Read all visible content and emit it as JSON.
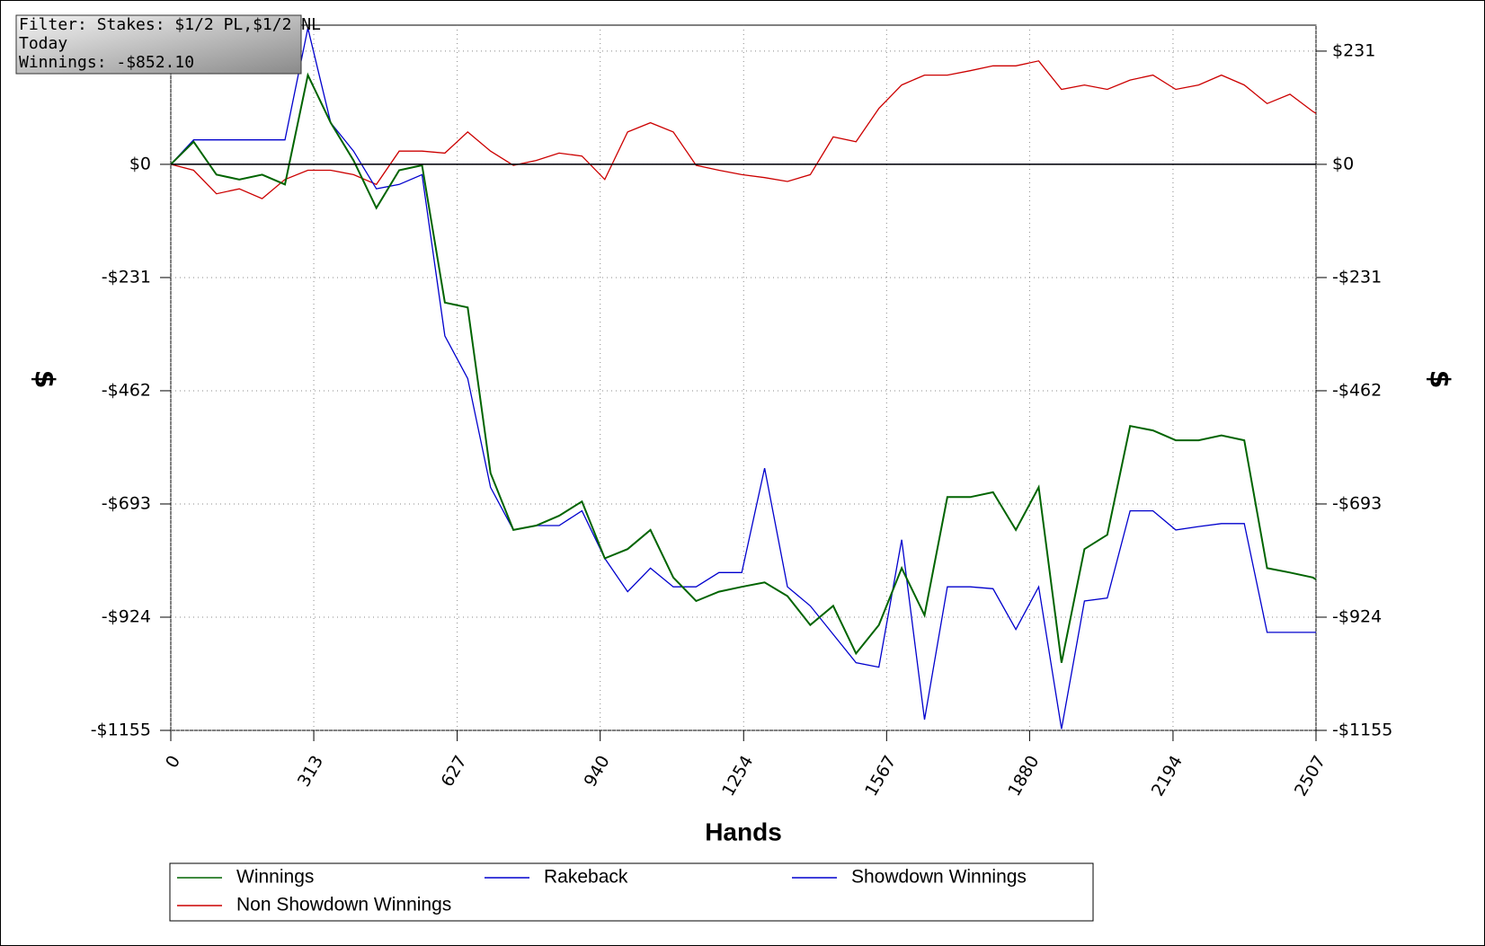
{
  "filter_box": {
    "lines": [
      "Filter: Stakes: $1/2 PL,$1/2 NL",
      "Today",
      "Winnings: -$852.10"
    ]
  },
  "chart_data": {
    "type": "line",
    "x_label": "Hands",
    "y_label": "$",
    "y2_label": "$",
    "x": [
      0,
      50,
      100,
      150,
      200,
      250,
      300,
      350,
      400,
      450,
      500,
      550,
      600,
      650,
      700,
      750,
      800,
      850,
      900,
      950,
      1000,
      1050,
      1100,
      1150,
      1200,
      1250,
      1300,
      1350,
      1400,
      1450,
      1500,
      1550,
      1600,
      1650,
      1700,
      1750,
      1800,
      1850,
      1900,
      1950,
      2000,
      2050,
      2100,
      2150,
      2200,
      2250,
      2300,
      2350,
      2400,
      2450,
      2500,
      2507
    ],
    "series": [
      {
        "name": "Winnings",
        "color": "#006400",
        "values": [
          0,
          46,
          -21,
          -31,
          -21,
          -41,
          182,
          85,
          8,
          -89,
          -12,
          -2,
          -282,
          -292,
          -630,
          -746,
          -737,
          -717,
          -688,
          -804,
          -785,
          -746,
          -843,
          -891,
          -872,
          -862,
          -853,
          -881,
          -940,
          -901,
          -998,
          -940,
          -824,
          -920,
          -679,
          -679,
          -669,
          -746,
          -659,
          -1017,
          -785,
          -756,
          -534,
          -543,
          -563,
          -563,
          -553,
          -563,
          -824,
          -833,
          -843,
          -847
        ]
      },
      {
        "name": "Rakeback",
        "color": "#0000cd",
        "values": [
          0,
          0,
          0,
          0,
          0,
          0,
          0,
          0,
          0,
          0,
          0,
          0,
          0,
          0,
          0,
          0,
          0,
          0,
          0,
          0,
          0,
          0,
          0,
          0,
          0,
          0,
          0,
          0,
          0,
          0,
          0,
          0,
          0,
          0,
          0,
          0,
          0,
          0,
          0,
          0,
          0,
          0,
          0,
          0,
          0,
          0,
          0,
          0,
          0,
          0,
          0,
          0
        ]
      },
      {
        "name": "Showdown Winnings",
        "color": "#0000cd",
        "values": [
          0,
          50,
          50,
          50,
          50,
          50,
          278,
          85,
          27,
          -50,
          -41,
          -21,
          -350,
          -437,
          -659,
          -746,
          -737,
          -737,
          -707,
          -804,
          -872,
          -824,
          -862,
          -862,
          -833,
          -833,
          -620,
          -862,
          -901,
          -959,
          -1017,
          -1026,
          -766,
          -1133,
          -862,
          -862,
          -866,
          -949,
          -862,
          -1152,
          -891,
          -885,
          -707,
          -707,
          -746,
          -739,
          -733,
          -733,
          -955,
          -955,
          -955,
          -955
        ]
      },
      {
        "name": "Non Showdown Winnings",
        "color": "#cc0000",
        "values": [
          0,
          -12,
          -60,
          -50,
          -70,
          -31,
          -12,
          -12,
          -21,
          -41,
          27,
          27,
          23,
          66,
          27,
          -2,
          8,
          23,
          17,
          -31,
          66,
          85,
          66,
          -2,
          -12,
          -21,
          -27,
          -35,
          -21,
          56,
          46,
          114,
          162,
          182,
          182,
          191,
          201,
          201,
          211,
          153,
          162,
          153,
          172,
          182,
          153,
          162,
          182,
          162,
          124,
          143,
          108,
          104
        ]
      }
    ],
    "xlim": [
      0,
      2507
    ],
    "xticks": [
      0,
      313,
      627,
      940,
      1254,
      1567,
      1880,
      2194,
      2507
    ],
    "ylim": [
      -1155,
      284
    ],
    "yticks": [
      {
        "value": 231,
        "label": "$231"
      },
      {
        "value": 0,
        "label": "$0"
      },
      {
        "value": -231,
        "label": "-$231"
      },
      {
        "value": -462,
        "label": "-$462"
      },
      {
        "value": -693,
        "label": "-$693"
      },
      {
        "value": -924,
        "label": "-$924"
      },
      {
        "value": -1155,
        "label": "-$1155"
      }
    ],
    "grid": true
  }
}
